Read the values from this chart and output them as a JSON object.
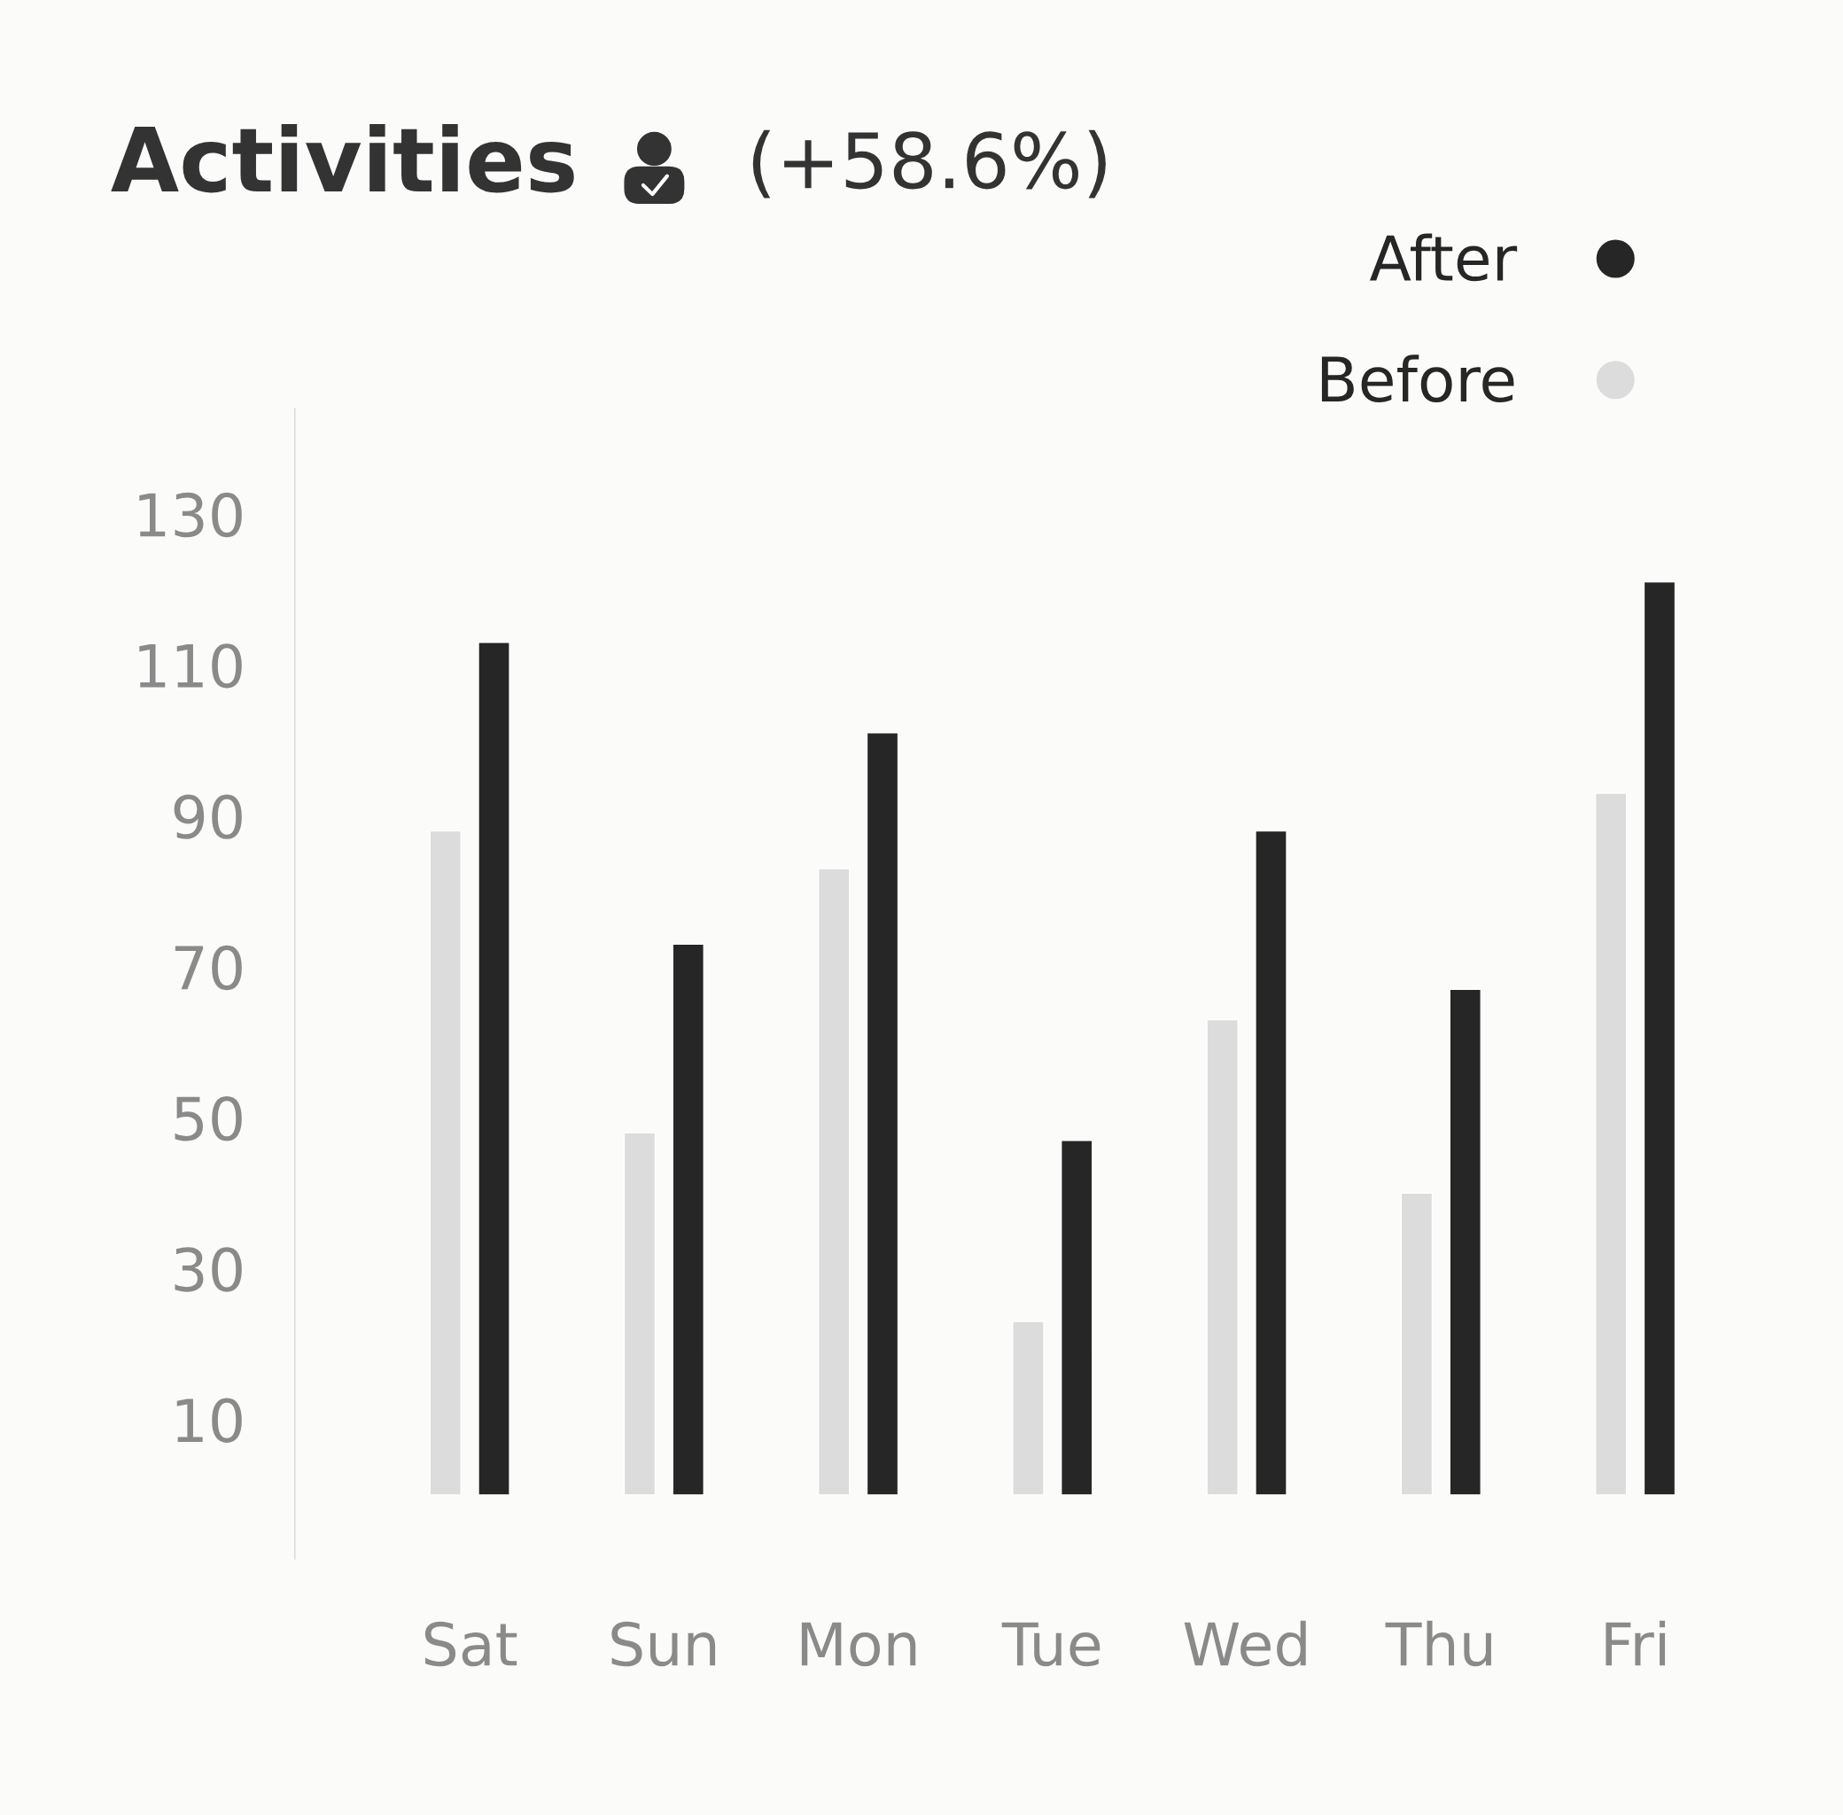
{
  "chart_data": {
    "type": "bar",
    "title": "Activities",
    "subtitle": "(+58.6%)",
    "categories": [
      "Sat",
      "Sun",
      "Mon",
      "Tue",
      "Wed",
      "Thu",
      "Fri"
    ],
    "series": [
      {
        "name": "Before",
        "color": "#dcdcdc",
        "values": [
          88,
          48,
          83,
          23,
          63,
          40,
          93
        ]
      },
      {
        "name": "After",
        "color": "#262626",
        "values": [
          113,
          73,
          101,
          47,
          88,
          67,
          121
        ]
      }
    ],
    "ylim": [
      -8.5,
      144
    ],
    "yticks": [
      10,
      30,
      50,
      70,
      90,
      110,
      130
    ],
    "grid": false,
    "legend": "top right"
  }
}
